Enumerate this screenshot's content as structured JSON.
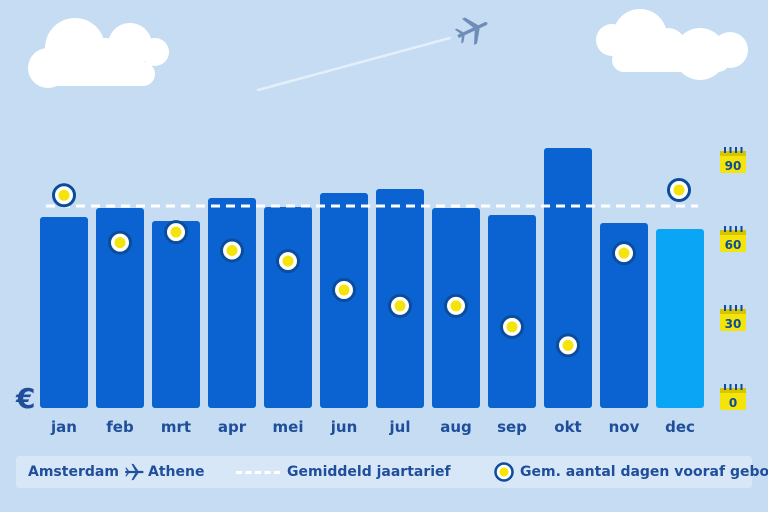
{
  "currency_symbol": "€",
  "legend": {
    "route_from": "Amsterdam",
    "route_icon": "airplane-icon",
    "route_to": "Athene",
    "avg_label": "Gemiddeld jaartarief",
    "days_label": "Gem. aantal dagen vooraf geboekt"
  },
  "colors": {
    "background": "#c5dcf3",
    "bar": "#0a63d1",
    "bar_highlight": "#0aa6f5",
    "marker_ring": "#0b4c9c",
    "marker_fill": "#f4e409",
    "axis_label": "#1f4e9a",
    "calendar": "#f4e409"
  },
  "chart_data": {
    "type": "bar",
    "categories": [
      "jan",
      "feb",
      "mrt",
      "apr",
      "mei",
      "jun",
      "jul",
      "aug",
      "sep",
      "okt",
      "nov",
      "dec"
    ],
    "series": [
      {
        "values": [
          191,
          200,
          187,
          210,
          201,
          215,
          219,
          200,
          193,
          260,
          185,
          179
        ]
      }
    ],
    "average_price": 202,
    "price_range": [
      0,
      300
    ],
    "highlight_category": "dec",
    "days_booked_in_advance": [
      77,
      59,
      63,
      56,
      52,
      41,
      35,
      35,
      27,
      20,
      55,
      79
    ],
    "days_axis": {
      "ticks": [
        0,
        30,
        60,
        90
      ],
      "range": [
        0,
        90
      ]
    },
    "grid": false
  }
}
